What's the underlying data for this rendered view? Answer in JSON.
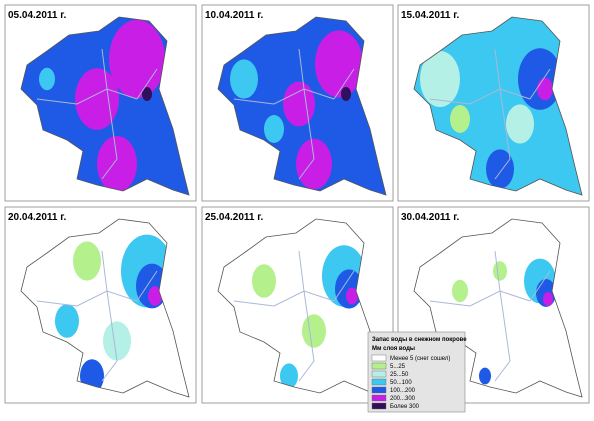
{
  "panels": [
    {
      "date": "05.04.2011 г."
    },
    {
      "date": "10.04.2011 г."
    },
    {
      "date": "15.04.2011 г."
    },
    {
      "date": "20.04.2011 г."
    },
    {
      "date": "25.04.2011 г."
    },
    {
      "date": "30.04.2011 г."
    }
  ],
  "legend": {
    "title": "Запас воды в снежном покрове",
    "subtitle": "Мм слоя воды",
    "items": [
      {
        "label": "Менее 5 (снег сошел)",
        "color": "#ffffff"
      },
      {
        "label": "5...25",
        "color": "#b4f08c"
      },
      {
        "label": "25...50",
        "color": "#b4f0e6"
      },
      {
        "label": "50...100",
        "color": "#3cc8f0"
      },
      {
        "label": "100...200",
        "color": "#1e5ae6"
      },
      {
        "label": "200...300",
        "color": "#c81ee6"
      },
      {
        "label": "Более 300",
        "color": "#30105a"
      }
    ]
  }
}
